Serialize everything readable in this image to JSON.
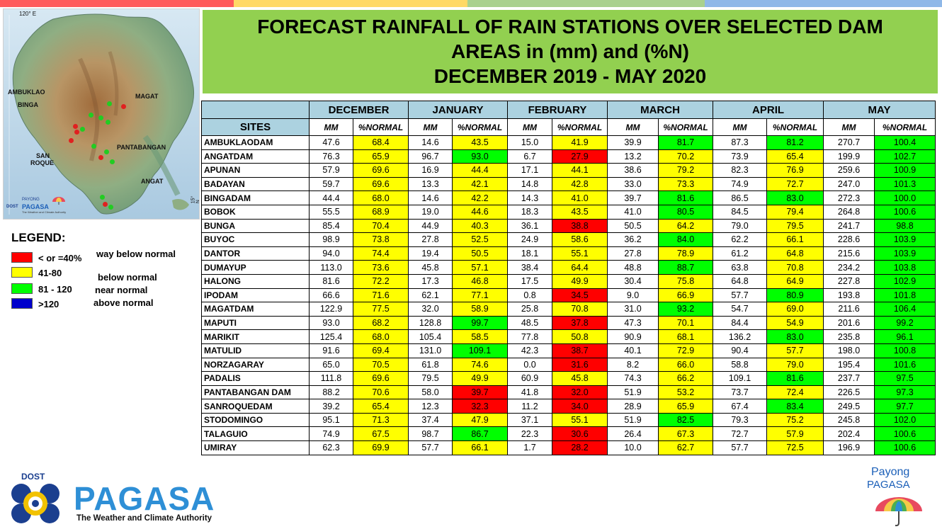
{
  "top_stripe_colors": [
    "#ff5a5a",
    "#ffd966",
    "#a9d18e",
    "#8fb8e8"
  ],
  "title": {
    "line1": "FORECAST RAINFALL OF RAIN STATIONS OVER SELECTED DAM",
    "line2": "AREAS in (mm) and (%N)",
    "line3": "DECEMBER 2019 - MAY 2020"
  },
  "map": {
    "coord_top": "120° E",
    "coord_side": "15° N",
    "labels": {
      "ambuklao": "AMBUKLAO",
      "binga": "BINGA",
      "magat": "MAGAT",
      "pantabangan": "PANTABANGAN",
      "san": "SAN",
      "roque": "ROQUE",
      "angat": "ANGAT"
    },
    "logo": {
      "dost": "DOST",
      "payong": "PAYONG",
      "pagasa": "PAGASA",
      "tagline": "The Weather and Climate Authority"
    }
  },
  "legend": {
    "title": "LEGEND:",
    "items": [
      {
        "range": "< or =40%",
        "description": "way below normal",
        "color": "#ff0000"
      },
      {
        "range": "41-80",
        "description": "below normal",
        "color": "#ffff00"
      },
      {
        "range": "81 - 120",
        "description": "near normal",
        "color": "#00ff00"
      },
      {
        "range": ">120",
        "description": "above normal",
        "color": "#0000cc"
      }
    ]
  },
  "table": {
    "sites_header": "SITES",
    "months": [
      "DECEMBER",
      "JANUARY",
      "FEBRUARY",
      "MARCH",
      "APRIL",
      "MAY"
    ],
    "sub_mm": "MM",
    "sub_pct": "%NORMAL",
    "rows": [
      {
        "site": "AMBUKLAODAM",
        "values": [
          "47.6",
          "68.4",
          "14.6",
          "43.5",
          "15.0",
          "41.9",
          "39.9",
          "81.7",
          "87.3",
          "81.2",
          "270.7",
          "100.4"
        ]
      },
      {
        "site": "ANGATDAM",
        "values": [
          "76.3",
          "65.9",
          "96.7",
          "93.0",
          "6.7",
          "27.9",
          "13.2",
          "70.2",
          "73.9",
          "65.4",
          "199.9",
          "102.7"
        ]
      },
      {
        "site": "APUNAN",
        "values": [
          "57.9",
          "69.6",
          "16.9",
          "44.4",
          "17.1",
          "44.1",
          "38.6",
          "79.2",
          "82.3",
          "76.9",
          "259.6",
          "100.9"
        ]
      },
      {
        "site": "BADAYAN",
        "values": [
          "59.7",
          "69.6",
          "13.3",
          "42.1",
          "14.8",
          "42.8",
          "33.0",
          "73.3",
          "74.9",
          "72.7",
          "247.0",
          "101.3"
        ]
      },
      {
        "site": "BINGADAM",
        "values": [
          "44.4",
          "68.0",
          "14.6",
          "42.2",
          "14.3",
          "41.0",
          "39.7",
          "81.6",
          "86.5",
          "83.0",
          "272.3",
          "100.0"
        ]
      },
      {
        "site": "BOBOK",
        "values": [
          "55.5",
          "68.9",
          "19.0",
          "44.6",
          "18.3",
          "43.5",
          "41.0",
          "80.5",
          "84.5",
          "79.4",
          "264.8",
          "100.6"
        ]
      },
      {
        "site": "BUNGA",
        "values": [
          "85.4",
          "70.4",
          "44.9",
          "40.3",
          "36.1",
          "38.8",
          "50.5",
          "64.2",
          "79.0",
          "79.5",
          "241.7",
          "98.8"
        ]
      },
      {
        "site": "BUYOC",
        "values": [
          "98.9",
          "73.8",
          "27.8",
          "52.5",
          "24.9",
          "58.6",
          "36.2",
          "84.0",
          "62.2",
          "66.1",
          "228.6",
          "103.9"
        ]
      },
      {
        "site": "DANTOR",
        "values": [
          "94.0",
          "74.4",
          "19.4",
          "50.5",
          "18.1",
          "55.1",
          "27.8",
          "78.9",
          "61.2",
          "64.8",
          "215.6",
          "103.9"
        ]
      },
      {
        "site": "DUMAYUP",
        "values": [
          "113.0",
          "73.6",
          "45.8",
          "57.1",
          "38.4",
          "64.4",
          "48.8",
          "88.7",
          "63.8",
          "70.8",
          "234.2",
          "103.8"
        ]
      },
      {
        "site": "HALONG",
        "values": [
          "81.6",
          "72.2",
          "17.3",
          "46.8",
          "17.5",
          "49.9",
          "30.4",
          "75.8",
          "64.8",
          "64.9",
          "227.8",
          "102.9"
        ]
      },
      {
        "site": "IPODAM",
        "values": [
          "66.6",
          "71.6",
          "62.1",
          "77.1",
          "0.8",
          "34.5",
          "9.0",
          "66.9",
          "57.7",
          "80.9",
          "193.8",
          "101.8"
        ]
      },
      {
        "site": "MAGATDAM",
        "values": [
          "122.9",
          "77.5",
          "32.0",
          "58.9",
          "25.8",
          "70.8",
          "31.0",
          "93.2",
          "54.7",
          "69.0",
          "211.6",
          "106.4"
        ]
      },
      {
        "site": "MAPUTI",
        "values": [
          "93.0",
          "68.2",
          "128.8",
          "99.7",
          "48.5",
          "37.8",
          "47.3",
          "70.1",
          "84.4",
          "54.9",
          "201.6",
          "99.2"
        ]
      },
      {
        "site": "MARIKIT",
        "values": [
          "125.4",
          "68.0",
          "105.4",
          "58.5",
          "77.8",
          "50.8",
          "90.9",
          "68.1",
          "136.2",
          "83.0",
          "235.8",
          "96.1"
        ]
      },
      {
        "site": "MATULID",
        "values": [
          "91.6",
          "69.4",
          "131.0",
          "109.1",
          "42.3",
          "38.7",
          "40.1",
          "72.9",
          "90.4",
          "57.7",
          "198.0",
          "100.8"
        ]
      },
      {
        "site": "NORZAGARAY",
        "values": [
          "65.0",
          "70.5",
          "61.8",
          "74.6",
          "0.0",
          "31.6",
          "8.2",
          "66.0",
          "58.8",
          "79.0",
          "195.4",
          "101.6"
        ]
      },
      {
        "site": "PADALIS",
        "values": [
          "111.8",
          "69.6",
          "79.5",
          "49.9",
          "60.9",
          "45.8",
          "74.3",
          "66.2",
          "109.1",
          "81.6",
          "237.7",
          "97.5"
        ]
      },
      {
        "site": "PANTABANGAN DAM",
        "values": [
          "88.2",
          "70.6",
          "58.0",
          "39.7",
          "41.8",
          "32.0",
          "51.9",
          "53.2",
          "73.7",
          "72.4",
          "226.5",
          "97.3"
        ]
      },
      {
        "site": "SANROQUEDAM",
        "values": [
          "39.2",
          "65.4",
          "12.3",
          "32.3",
          "11.2",
          "34.0",
          "28.9",
          "65.9",
          "67.4",
          "83.4",
          "249.5",
          "97.7"
        ]
      },
      {
        "site": "STODOMINGO",
        "values": [
          "95.1",
          "71.3",
          "37.4",
          "47.9",
          "37.1",
          "55.1",
          "51.9",
          "82.5",
          "79.3",
          "75.2",
          "245.8",
          "102.0"
        ]
      },
      {
        "site": "TALAGUIO",
        "values": [
          "74.9",
          "67.5",
          "98.7",
          "86.7",
          "22.3",
          "30.6",
          "26.4",
          "67.3",
          "72.7",
          "57.9",
          "202.4",
          "100.6"
        ]
      },
      {
        "site": "UMIRAY",
        "values": [
          "62.3",
          "69.9",
          "57.7",
          "66.1",
          "1.7",
          "28.2",
          "10.0",
          "62.7",
          "57.7",
          "72.5",
          "196.9",
          "100.6"
        ]
      }
    ]
  },
  "footer": {
    "dost": "DOST",
    "pagasa": "PAGASA",
    "tagline": "The Weather and Climate Authority",
    "payong": "Payong",
    "payong_pagasa": "PAGASA"
  }
}
